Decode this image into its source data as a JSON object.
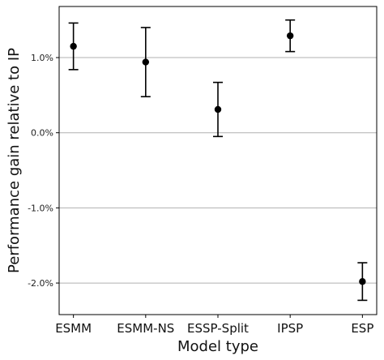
{
  "chart_data": {
    "type": "scatter",
    "title": "",
    "xlabel": "Model type",
    "ylabel": "Performance gain relative to IP",
    "categories": [
      "ESMM",
      "ESMM-NS",
      "ESSP-Split",
      "IPSP",
      "ESP"
    ],
    "series": [
      {
        "values": [
          1.15,
          0.94,
          0.31,
          1.29,
          -1.98
        ],
        "err_low": [
          0.84,
          0.48,
          -0.05,
          1.08,
          -2.23
        ],
        "err_high": [
          1.46,
          1.4,
          0.67,
          1.5,
          -1.73
        ]
      }
    ],
    "yticks": [
      -2.0,
      -1.0,
      0.0,
      1.0
    ],
    "ytick_labels": [
      "-2.0%",
      "-1.0%",
      "0.0%",
      "1.0%"
    ],
    "ylim": [
      -2.42,
      1.68
    ],
    "grid": "horizontal",
    "colors": {
      "marker": "#000000",
      "grid": "#b0b0b0",
      "axis": "#000000"
    }
  }
}
